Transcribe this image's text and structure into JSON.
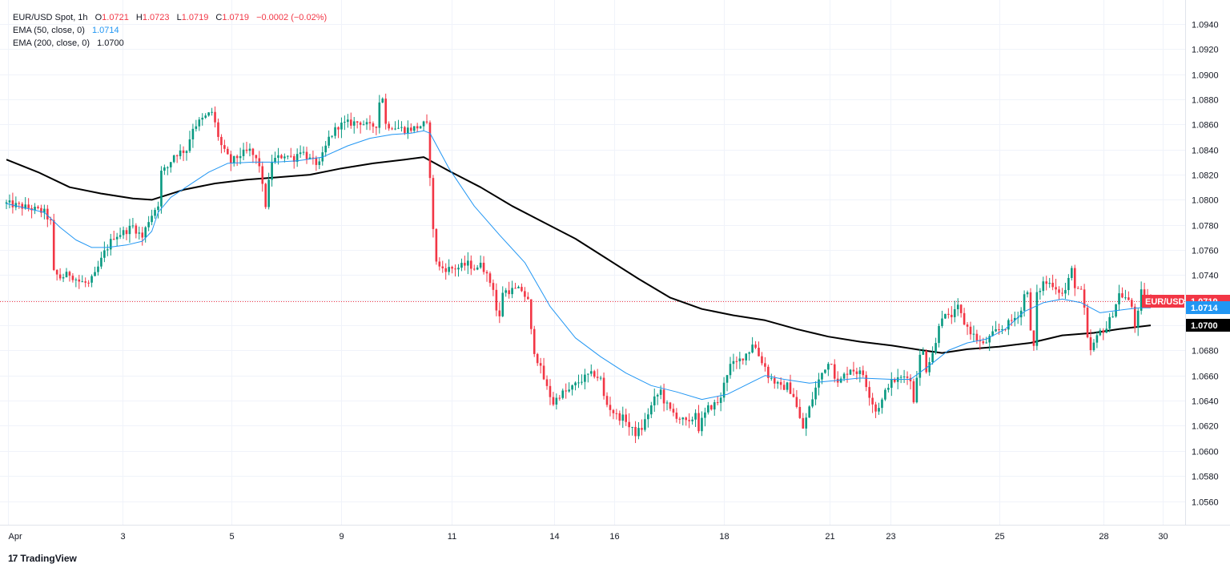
{
  "header": {
    "symbol": "EUR/USD Spot, 1h",
    "open_label": "O",
    "open": "1.0721",
    "high_label": "H",
    "high": "1.0723",
    "low_label": "L",
    "low": "1.0719",
    "close_label": "C",
    "close": "1.0719",
    "change": "−0.0002 (−0.02%)",
    "ema50_label": "EMA (50, close, 0)",
    "ema50_value": "1.0714",
    "ema200_label": "EMA (200, close, 0)",
    "ema200_value": "1.0700"
  },
  "brand": {
    "logo": "17",
    "name": "TradingView"
  },
  "colors": {
    "up": "#089981",
    "down": "#f23645",
    "ema50": "#2196f3",
    "ema200": "#000000",
    "grid": "#f0f3fa",
    "axis_text": "#131722"
  },
  "chart_data": {
    "type": "candlestick",
    "title": "EUR/USD Spot, 1h",
    "y_ticks": [
      "1.0560",
      "1.0580",
      "1.0600",
      "1.0620",
      "1.0640",
      "1.0660",
      "1.0680",
      "1.0700",
      "1.0720",
      "1.0740",
      "1.0760",
      "1.0780",
      "1.0800",
      "1.0820",
      "1.0840",
      "1.0860",
      "1.0880",
      "1.0900",
      "1.0920",
      "1.0940"
    ],
    "x_ticks": [
      "Apr",
      "3",
      "5",
      "9",
      "11",
      "14",
      "16",
      "18",
      "21",
      "23",
      "25",
      "28",
      "30"
    ],
    "ylim": [
      1.0545,
      1.0955
    ],
    "grid": true,
    "price_labels": [
      {
        "text": "EUR/USD",
        "value": "1.0719",
        "color": "#f23645"
      },
      {
        "text": "",
        "value": "1.0714",
        "color": "#2196f3"
      },
      {
        "text": "",
        "value": "1.0700",
        "color": "#000000"
      }
    ],
    "current_price": 1.0719,
    "price_path": [
      [
        0,
        1.0797
      ],
      [
        8,
        1.0793
      ],
      [
        12,
        1.079
      ],
      [
        14,
        1.0782
      ],
      [
        15,
        1.0742
      ],
      [
        17,
        1.0738
      ],
      [
        20,
        1.0741
      ],
      [
        23,
        1.0735
      ],
      [
        26,
        1.0733
      ],
      [
        28,
        1.074
      ],
      [
        30,
        1.0752
      ],
      [
        31,
        1.0758
      ],
      [
        34,
        1.0771
      ],
      [
        37,
        1.0774
      ],
      [
        40,
        1.0779
      ],
      [
        43,
        1.077
      ],
      [
        45,
        1.0784
      ],
      [
        48,
        1.0797
      ],
      [
        49,
        1.0822
      ],
      [
        51,
        1.0826
      ],
      [
        53,
        1.0836
      ],
      [
        55,
        1.0838
      ],
      [
        57,
        1.084
      ],
      [
        59,
        1.0858
      ],
      [
        62,
        1.0864
      ],
      [
        65,
        1.087
      ],
      [
        67,
        1.0851
      ],
      [
        68,
        1.0843
      ],
      [
        69,
        1.0838
      ],
      [
        71,
        1.083
      ],
      [
        74,
        1.0836
      ],
      [
        77,
        1.0839
      ],
      [
        80,
        1.0828
      ],
      [
        81,
        1.081
      ],
      [
        82,
        1.0796
      ],
      [
        84,
        1.0831
      ],
      [
        88,
        1.0836
      ],
      [
        91,
        1.0833
      ],
      [
        93,
        1.084
      ],
      [
        96,
        1.0832
      ],
      [
        99,
        1.0828
      ],
      [
        102,
        1.0849
      ],
      [
        105,
        1.0859
      ],
      [
        108,
        1.0861
      ],
      [
        112,
        1.0862
      ],
      [
        115,
        1.0858
      ],
      [
        117,
        1.086
      ],
      [
        118,
        1.0878
      ],
      [
        119,
        1.0882
      ],
      [
        120,
        1.086
      ],
      [
        123,
        1.0858
      ],
      [
        126,
        1.0856
      ],
      [
        129,
        1.0857
      ],
      [
        132,
        1.086
      ],
      [
        133,
        1.0859
      ],
      [
        134,
        1.082
      ],
      [
        135,
        1.0775
      ],
      [
        136,
        1.0752
      ],
      [
        137,
        1.0746
      ],
      [
        140,
        1.0745
      ],
      [
        143,
        1.0746
      ],
      [
        146,
        1.0749
      ],
      [
        149,
        1.0744
      ],
      [
        150,
        1.0752
      ],
      [
        152,
        1.0739
      ],
      [
        154,
        1.073
      ],
      [
        155,
        1.0712
      ],
      [
        156,
        1.0706
      ],
      [
        157,
        1.0727
      ],
      [
        160,
        1.0728
      ],
      [
        163,
        1.0728
      ],
      [
        165,
        1.0719
      ],
      [
        166,
        1.0695
      ],
      [
        167,
        1.068
      ],
      [
        169,
        1.0665
      ],
      [
        171,
        1.065
      ],
      [
        173,
        1.0638
      ],
      [
        175,
        1.0645
      ],
      [
        178,
        1.0648
      ],
      [
        181,
        1.0655
      ],
      [
        184,
        1.066
      ],
      [
        186,
        1.0661
      ],
      [
        188,
        1.0657
      ],
      [
        189,
        1.0643
      ],
      [
        190,
        1.0637
      ],
      [
        193,
        1.0628
      ],
      [
        196,
        1.0625
      ],
      [
        197,
        1.0619
      ],
      [
        199,
        1.0614
      ],
      [
        201,
        1.0618
      ],
      [
        203,
        1.063
      ],
      [
        205,
        1.0641
      ],
      [
        207,
        1.0648
      ],
      [
        208,
        1.064
      ],
      [
        210,
        1.0632
      ],
      [
        212,
        1.0628
      ],
      [
        214,
        1.0624
      ],
      [
        216,
        1.0621
      ],
      [
        218,
        1.0631
      ],
      [
        219,
        1.0618
      ],
      [
        220,
        1.0624
      ],
      [
        222,
        1.0634
      ],
      [
        224,
        1.0637
      ],
      [
        226,
        1.0641
      ],
      [
        227,
        1.0656
      ],
      [
        229,
        1.0668
      ],
      [
        231,
        1.067
      ],
      [
        233,
        1.0675
      ],
      [
        235,
        1.068
      ],
      [
        236,
        1.0686
      ],
      [
        237,
        1.0682
      ],
      [
        238,
        1.0676
      ],
      [
        240,
        1.0667
      ],
      [
        241,
        1.066
      ],
      [
        243,
        1.0655
      ],
      [
        245,
        1.065
      ],
      [
        247,
        1.0652
      ],
      [
        249,
        1.0644
      ],
      [
        251,
        1.0625
      ],
      [
        252,
        1.0618
      ],
      [
        254,
        1.0634
      ],
      [
        256,
        1.065
      ],
      [
        258,
        1.0662
      ],
      [
        259,
        1.0667
      ],
      [
        261,
        1.0672
      ],
      [
        262,
        1.066
      ],
      [
        263,
        1.0653
      ],
      [
        265,
        1.066
      ],
      [
        267,
        1.0666
      ],
      [
        269,
        1.0663
      ],
      [
        271,
        1.0661
      ],
      [
        273,
        1.0645
      ],
      [
        275,
        1.0632
      ],
      [
        277,
        1.064
      ],
      [
        279,
        1.0653
      ],
      [
        281,
        1.0656
      ],
      [
        283,
        1.0658
      ],
      [
        285,
        1.0661
      ],
      [
        286,
        1.0655
      ],
      [
        287,
        1.064
      ],
      [
        288,
        1.0661
      ],
      [
        289,
        1.0675
      ],
      [
        290,
        1.0679
      ],
      [
        291,
        1.0665
      ],
      [
        292,
        1.0673
      ],
      [
        294,
        1.0685
      ],
      [
        295,
        1.0702
      ],
      [
        296,
        1.0708
      ],
      [
        298,
        1.0706
      ],
      [
        300,
        1.071
      ],
      [
        301,
        1.0714
      ],
      [
        303,
        1.0702
      ],
      [
        305,
        1.0695
      ],
      [
        307,
        1.0689
      ],
      [
        309,
        1.0684
      ],
      [
        311,
        1.069
      ],
      [
        313,
        1.0695
      ],
      [
        316,
        1.0699
      ],
      [
        319,
        1.0706
      ],
      [
        321,
        1.0712
      ],
      [
        322,
        1.0724
      ],
      [
        323,
        1.0729
      ],
      [
        324,
        1.0694
      ],
      [
        325,
        1.0683
      ],
      [
        326,
        1.0724
      ],
      [
        328,
        1.0734
      ],
      [
        331,
        1.0733
      ],
      [
        334,
        1.0725
      ],
      [
        335,
        1.0728
      ],
      [
        337,
        1.0744
      ],
      [
        338,
        1.0732
      ],
      [
        340,
        1.0726
      ],
      [
        341,
        1.0712
      ],
      [
        342,
        1.0688
      ],
      [
        343,
        1.068
      ],
      [
        344,
        1.0685
      ],
      [
        346,
        1.0695
      ],
      [
        348,
        1.0698
      ],
      [
        350,
        1.071
      ],
      [
        352,
        1.0725
      ],
      [
        354,
        1.0722
      ],
      [
        356,
        1.0715
      ],
      [
        357,
        1.07
      ],
      [
        358,
        1.0709
      ],
      [
        359,
        1.0726
      ],
      [
        361,
        1.0722
      ],
      [
        362,
        1.0719
      ]
    ],
    "ema50_path": [
      [
        0,
        1.0797
      ],
      [
        12,
        1.079
      ],
      [
        17,
        1.0778
      ],
      [
        22,
        1.0768
      ],
      [
        27,
        1.0762
      ],
      [
        32,
        1.0762
      ],
      [
        38,
        1.0764
      ],
      [
        43,
        1.0767
      ],
      [
        46,
        1.0775
      ],
      [
        48,
        1.079
      ],
      [
        52,
        1.0802
      ],
      [
        58,
        1.0812
      ],
      [
        64,
        1.0822
      ],
      [
        70,
        1.0829
      ],
      [
        78,
        1.083
      ],
      [
        85,
        1.083
      ],
      [
        92,
        1.0831
      ],
      [
        100,
        1.0834
      ],
      [
        108,
        1.0843
      ],
      [
        115,
        1.0849
      ],
      [
        122,
        1.0852
      ],
      [
        128,
        1.0853
      ],
      [
        132,
        1.0855
      ],
      [
        134,
        1.0853
      ],
      [
        140,
        1.0825
      ],
      [
        148,
        1.0795
      ],
      [
        156,
        1.0772
      ],
      [
        164,
        1.075
      ],
      [
        172,
        1.0715
      ],
      [
        180,
        1.069
      ],
      [
        188,
        1.0675
      ],
      [
        196,
        1.0662
      ],
      [
        204,
        1.0652
      ],
      [
        212,
        1.0647
      ],
      [
        220,
        1.0641
      ],
      [
        228,
        1.0645
      ],
      [
        236,
        1.0655
      ],
      [
        240,
        1.066
      ],
      [
        246,
        1.0657
      ],
      [
        254,
        1.0654
      ],
      [
        262,
        1.0656
      ],
      [
        270,
        1.0658
      ],
      [
        280,
        1.0657
      ],
      [
        286,
        1.0657
      ],
      [
        292,
        1.0668
      ],
      [
        298,
        1.068
      ],
      [
        304,
        1.0686
      ],
      [
        310,
        1.0689
      ],
      [
        316,
        1.0697
      ],
      [
        322,
        1.0711
      ],
      [
        328,
        1.0718
      ],
      [
        334,
        1.0721
      ],
      [
        340,
        1.0718
      ],
      [
        346,
        1.071
      ],
      [
        352,
        1.0712
      ],
      [
        358,
        1.0714
      ],
      [
        362,
        1.0714
      ]
    ],
    "ema200_path": [
      [
        0,
        1.0832
      ],
      [
        10,
        1.0822
      ],
      [
        20,
        1.081
      ],
      [
        30,
        1.0805
      ],
      [
        40,
        1.0801
      ],
      [
        46,
        1.08
      ],
      [
        56,
        1.0808
      ],
      [
        66,
        1.0813
      ],
      [
        76,
        1.0816
      ],
      [
        86,
        1.0818
      ],
      [
        96,
        1.082
      ],
      [
        106,
        1.0825
      ],
      [
        116,
        1.0829
      ],
      [
        126,
        1.0832
      ],
      [
        132,
        1.0834
      ],
      [
        140,
        1.0823
      ],
      [
        150,
        1.081
      ],
      [
        160,
        1.0795
      ],
      [
        170,
        1.0782
      ],
      [
        180,
        1.0769
      ],
      [
        190,
        1.0753
      ],
      [
        200,
        1.0737
      ],
      [
        210,
        1.0722
      ],
      [
        220,
        1.0713
      ],
      [
        230,
        1.0708
      ],
      [
        240,
        1.0704
      ],
      [
        250,
        1.0697
      ],
      [
        260,
        1.0691
      ],
      [
        270,
        1.0687
      ],
      [
        280,
        1.0684
      ],
      [
        290,
        1.068
      ],
      [
        296,
        1.0678
      ],
      [
        304,
        1.0681
      ],
      [
        314,
        1.0683
      ],
      [
        324,
        1.0686
      ],
      [
        334,
        1.0692
      ],
      [
        344,
        1.0694
      ],
      [
        352,
        1.0697
      ],
      [
        362,
        1.07
      ]
    ]
  }
}
